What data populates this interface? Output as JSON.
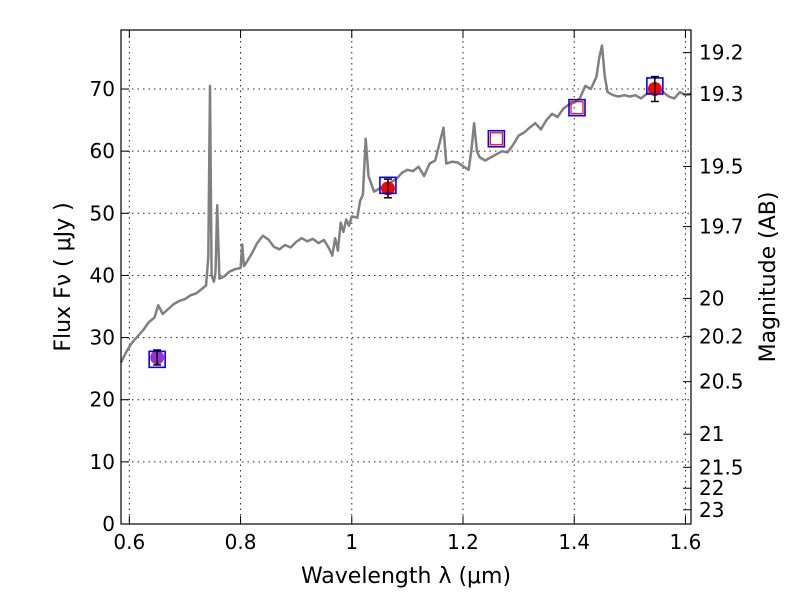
{
  "chart_data": {
    "type": "line",
    "xlabel": "Wavelength  λ (μm)",
    "ylabel": "Flux  Fν  ( μJy )",
    "ylabel_right": "Magnitude (AB)",
    "xlim": [
      0.585,
      1.61
    ],
    "ylim": [
      0,
      79.5
    ],
    "grid": true,
    "x_ticks": [
      0.6,
      0.8,
      1,
      1.2,
      1.4,
      1.6
    ],
    "x_tick_labels": [
      "0.6",
      "0.8",
      "1",
      "1.2",
      "1.4",
      "1.6"
    ],
    "y_ticks": [
      0,
      10,
      20,
      30,
      40,
      50,
      60,
      70
    ],
    "y_tick_labels": [
      "0",
      "10",
      "20",
      "30",
      "40",
      "50",
      "60",
      "70"
    ],
    "right_ticks": [
      19.2,
      19.3,
      19.5,
      19.7,
      20,
      20.2,
      20.5,
      21,
      21.5,
      22,
      23
    ],
    "right_tick_labels": [
      "19.2",
      "19.3",
      "19.5",
      "19.7",
      "20",
      "20.2",
      "20.5",
      "21",
      "21.5",
      "22",
      "23"
    ],
    "series": [
      {
        "color": "#808080",
        "points": [
          [
            0.585,
            26.0
          ],
          [
            0.595,
            27.8
          ],
          [
            0.605,
            29.2
          ],
          [
            0.615,
            30.2
          ],
          [
            0.625,
            31.2
          ],
          [
            0.635,
            32.5
          ],
          [
            0.645,
            33.2
          ],
          [
            0.652,
            35.2
          ],
          [
            0.66,
            33.8
          ],
          [
            0.67,
            34.6
          ],
          [
            0.68,
            35.4
          ],
          [
            0.69,
            35.9
          ],
          [
            0.7,
            36.2
          ],
          [
            0.71,
            36.8
          ],
          [
            0.72,
            37.1
          ],
          [
            0.73,
            37.8
          ],
          [
            0.738,
            38.4
          ],
          [
            0.742,
            43.0
          ],
          [
            0.745,
            70.5
          ],
          [
            0.748,
            40.0
          ],
          [
            0.752,
            39.0
          ],
          [
            0.755,
            40.5
          ],
          [
            0.758,
            51.3
          ],
          [
            0.762,
            39.5
          ],
          [
            0.77,
            39.8
          ],
          [
            0.78,
            40.6
          ],
          [
            0.79,
            41.0
          ],
          [
            0.8,
            41.2
          ],
          [
            0.803,
            45.0
          ],
          [
            0.806,
            41.5
          ],
          [
            0.81,
            42.0
          ],
          [
            0.82,
            43.5
          ],
          [
            0.83,
            45.2
          ],
          [
            0.84,
            46.4
          ],
          [
            0.85,
            45.8
          ],
          [
            0.86,
            44.6
          ],
          [
            0.87,
            44.2
          ],
          [
            0.88,
            44.9
          ],
          [
            0.89,
            44.5
          ],
          [
            0.9,
            45.4
          ],
          [
            0.91,
            46.0
          ],
          [
            0.92,
            45.5
          ],
          [
            0.93,
            45.9
          ],
          [
            0.94,
            45.2
          ],
          [
            0.95,
            45.7
          ],
          [
            0.96,
            44.2
          ],
          [
            0.965,
            43.2
          ],
          [
            0.97,
            46.0
          ],
          [
            0.975,
            44.0
          ],
          [
            0.98,
            48.5
          ],
          [
            0.985,
            47.0
          ],
          [
            0.99,
            49.0
          ],
          [
            0.995,
            48.0
          ],
          [
            1.0,
            49.5
          ],
          [
            1.01,
            49.3
          ],
          [
            1.015,
            52.0
          ],
          [
            1.02,
            53.0
          ],
          [
            1.025,
            62.0
          ],
          [
            1.03,
            56.0
          ],
          [
            1.04,
            53.5
          ],
          [
            1.05,
            54.0
          ],
          [
            1.06,
            54.5
          ],
          [
            1.07,
            55.0
          ],
          [
            1.08,
            55.5
          ],
          [
            1.09,
            56.5
          ],
          [
            1.1,
            57.0
          ],
          [
            1.11,
            56.8
          ],
          [
            1.12,
            57.5
          ],
          [
            1.13,
            56.0
          ],
          [
            1.14,
            58.0
          ],
          [
            1.15,
            58.5
          ],
          [
            1.165,
            63.8
          ],
          [
            1.17,
            58.0
          ],
          [
            1.18,
            58.3
          ],
          [
            1.19,
            58.2
          ],
          [
            1.2,
            57.6
          ],
          [
            1.21,
            57.0
          ],
          [
            1.215,
            60.0
          ],
          [
            1.22,
            64.5
          ],
          [
            1.225,
            60.0
          ],
          [
            1.23,
            59.0
          ],
          [
            1.24,
            58.5
          ],
          [
            1.25,
            59.0
          ],
          [
            1.26,
            59.5
          ],
          [
            1.27,
            60.0
          ],
          [
            1.28,
            59.8
          ],
          [
            1.29,
            61.0
          ],
          [
            1.3,
            62.5
          ],
          [
            1.31,
            63.0
          ],
          [
            1.32,
            63.8
          ],
          [
            1.33,
            64.5
          ],
          [
            1.34,
            63.5
          ],
          [
            1.35,
            65.0
          ],
          [
            1.36,
            66.0
          ],
          [
            1.37,
            65.5
          ],
          [
            1.38,
            66.8
          ],
          [
            1.39,
            67.5
          ],
          [
            1.4,
            67.8
          ],
          [
            1.41,
            68.5
          ],
          [
            1.42,
            70.5
          ],
          [
            1.43,
            70.0
          ],
          [
            1.44,
            72.0
          ],
          [
            1.445,
            75.0
          ],
          [
            1.45,
            77.0
          ],
          [
            1.455,
            72.0
          ],
          [
            1.46,
            69.5
          ],
          [
            1.47,
            69.0
          ],
          [
            1.48,
            68.8
          ],
          [
            1.49,
            69.0
          ],
          [
            1.5,
            68.8
          ],
          [
            1.51,
            69.0
          ],
          [
            1.52,
            68.5
          ],
          [
            1.53,
            69.2
          ],
          [
            1.54,
            69.5
          ],
          [
            1.55,
            70.0
          ],
          [
            1.56,
            69.5
          ],
          [
            1.57,
            68.8
          ],
          [
            1.58,
            68.5
          ],
          [
            1.59,
            69.5
          ],
          [
            1.6,
            69.0
          ],
          [
            1.61,
            69.2
          ]
        ]
      }
    ],
    "markers": [
      {
        "x": 0.65,
        "model": 26.5,
        "obs": 26.8,
        "err": 1.2,
        "fill": "#9b30d0"
      },
      {
        "x": 1.065,
        "model": 54.5,
        "obs": 54.0,
        "err": 1.5,
        "fill": "#ff0000"
      },
      {
        "x": 1.26,
        "model": 62.0,
        "obs": 61.5,
        "err": 0.0,
        "fill": "none"
      },
      {
        "x": 1.405,
        "model": 67.0,
        "obs": 66.8,
        "err": 0.0,
        "fill": "none"
      },
      {
        "x": 1.545,
        "model": 70.5,
        "obs": 70.0,
        "err": 2.0,
        "fill": "#ff0000"
      }
    ],
    "colors": {
      "model_box": "#0000ff",
      "open_box": "#ff0000",
      "errorbar": "#000000"
    }
  }
}
